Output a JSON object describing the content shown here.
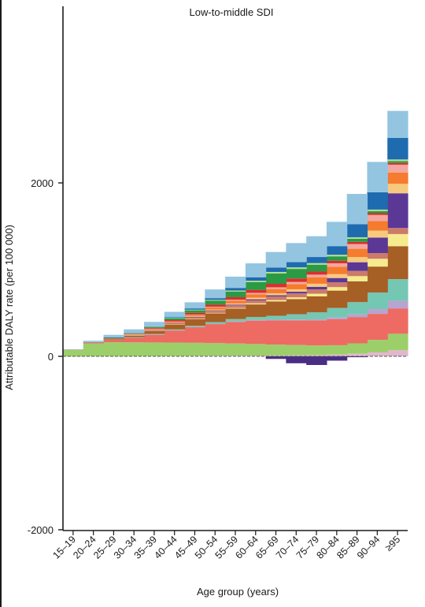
{
  "chart_data": {
    "type": "bar",
    "subtype": "stacked-step-area",
    "title": "Low-to-middle SDI",
    "xlabel": "Age group (years)",
    "ylabel": "Attributable DALY rate (per 100 000)",
    "ylim": [
      -2000,
      3000
    ],
    "yticks": [
      -2000,
      0,
      2000
    ],
    "ytick_labels": [
      "-2000",
      "0",
      "2000"
    ],
    "grid": false,
    "legend": "none",
    "categories": [
      "15–19",
      "20–24",
      "25–29",
      "30–34",
      "35–39",
      "40–44",
      "45–49",
      "50–54",
      "55–59",
      "60–64",
      "65–69",
      "70–74",
      "75–79",
      "80–84",
      "85–89",
      "90–94",
      "≥95"
    ],
    "series": [
      {
        "color": "#e2b7cd",
        "values": [
          1,
          2,
          3,
          3,
          4,
          5,
          6,
          7,
          8,
          9,
          10,
          12,
          15,
          20,
          30,
          45,
          70
        ]
      },
      {
        "color": "#9ccf6a",
        "values": [
          75,
          145,
          160,
          158,
          156,
          154,
          150,
          145,
          140,
          133,
          125,
          118,
          110,
          108,
          120,
          145,
          190
        ]
      },
      {
        "color": "#ed6b62",
        "values": [
          2,
          10,
          30,
          55,
          90,
          140,
          180,
          220,
          250,
          270,
          280,
          285,
          290,
          300,
          300,
          300,
          290
        ]
      },
      {
        "color": "#b9a3cf",
        "values": [
          0,
          0,
          0,
          1,
          2,
          3,
          4,
          5,
          6,
          7,
          8,
          10,
          12,
          20,
          35,
          55,
          90
        ]
      },
      {
        "color": "#74c7b3",
        "values": [
          0,
          1,
          2,
          4,
          6,
          8,
          12,
          18,
          26,
          35,
          45,
          60,
          80,
          110,
          140,
          190,
          250
        ]
      },
      {
        "color": "#a65f24",
        "values": [
          0,
          5,
          10,
          20,
          35,
          55,
          75,
          100,
          120,
          145,
          165,
          175,
          185,
          200,
          240,
          300,
          380
        ]
      },
      {
        "color": "#f6eb8e",
        "values": [
          0,
          0,
          0,
          1,
          2,
          3,
          4,
          6,
          8,
          12,
          16,
          20,
          30,
          40,
          60,
          90,
          140
        ]
      },
      {
        "color": "#cc7a6a",
        "values": [
          0,
          2,
          5,
          8,
          12,
          15,
          20,
          25,
          30,
          35,
          40,
          45,
          50,
          55,
          60,
          65,
          70
        ]
      },
      {
        "color": "#5b3896",
        "values": [
          0,
          0,
          0,
          0,
          1,
          2,
          3,
          5,
          8,
          12,
          15,
          20,
          30,
          50,
          100,
          180,
          400
        ]
      },
      {
        "color": "#f7c97f",
        "values": [
          0,
          0,
          1,
          2,
          3,
          5,
          7,
          10,
          14,
          18,
          22,
          28,
          35,
          45,
          60,
          80,
          110
        ]
      },
      {
        "color": "#f57b2f",
        "values": [
          0,
          0,
          1,
          3,
          6,
          10,
          15,
          22,
          30,
          40,
          50,
          60,
          75,
          85,
          95,
          110,
          130
        ]
      },
      {
        "color": "#f4a6a0",
        "values": [
          0,
          0,
          0,
          1,
          2,
          3,
          5,
          8,
          12,
          16,
          20,
          25,
          30,
          40,
          55,
          70,
          90
        ]
      },
      {
        "color": "#d92f2b",
        "values": [
          0,
          0,
          2,
          5,
          10,
          15,
          20,
          25,
          30,
          35,
          40,
          40,
          35,
          30,
          25,
          20,
          20
        ]
      },
      {
        "color": "#2a9a45",
        "values": [
          0,
          0,
          2,
          5,
          10,
          20,
          30,
          45,
          65,
          90,
          120,
          110,
          80,
          50,
          35,
          25,
          20
        ]
      },
      {
        "color": "#b2de8e",
        "values": [
          0,
          0,
          1,
          2,
          3,
          5,
          7,
          10,
          12,
          15,
          17,
          18,
          18,
          18,
          18,
          17,
          20
        ]
      },
      {
        "color": "#1e6bb0",
        "values": [
          0,
          0,
          1,
          3,
          5,
          10,
          15,
          20,
          30,
          40,
          50,
          60,
          70,
          100,
          150,
          200,
          250
        ]
      },
      {
        "color": "#93c5e1",
        "values": [
          2,
          15,
          30,
          40,
          50,
          60,
          70,
          100,
          130,
          160,
          180,
          220,
          240,
          280,
          350,
          350,
          310
        ]
      },
      {
        "color": "#4a2d85",
        "values": [
          0,
          0,
          0,
          0,
          0,
          0,
          0,
          0,
          0,
          0,
          -30,
          -80,
          -100,
          -50,
          -10,
          0,
          0
        ]
      }
    ]
  }
}
